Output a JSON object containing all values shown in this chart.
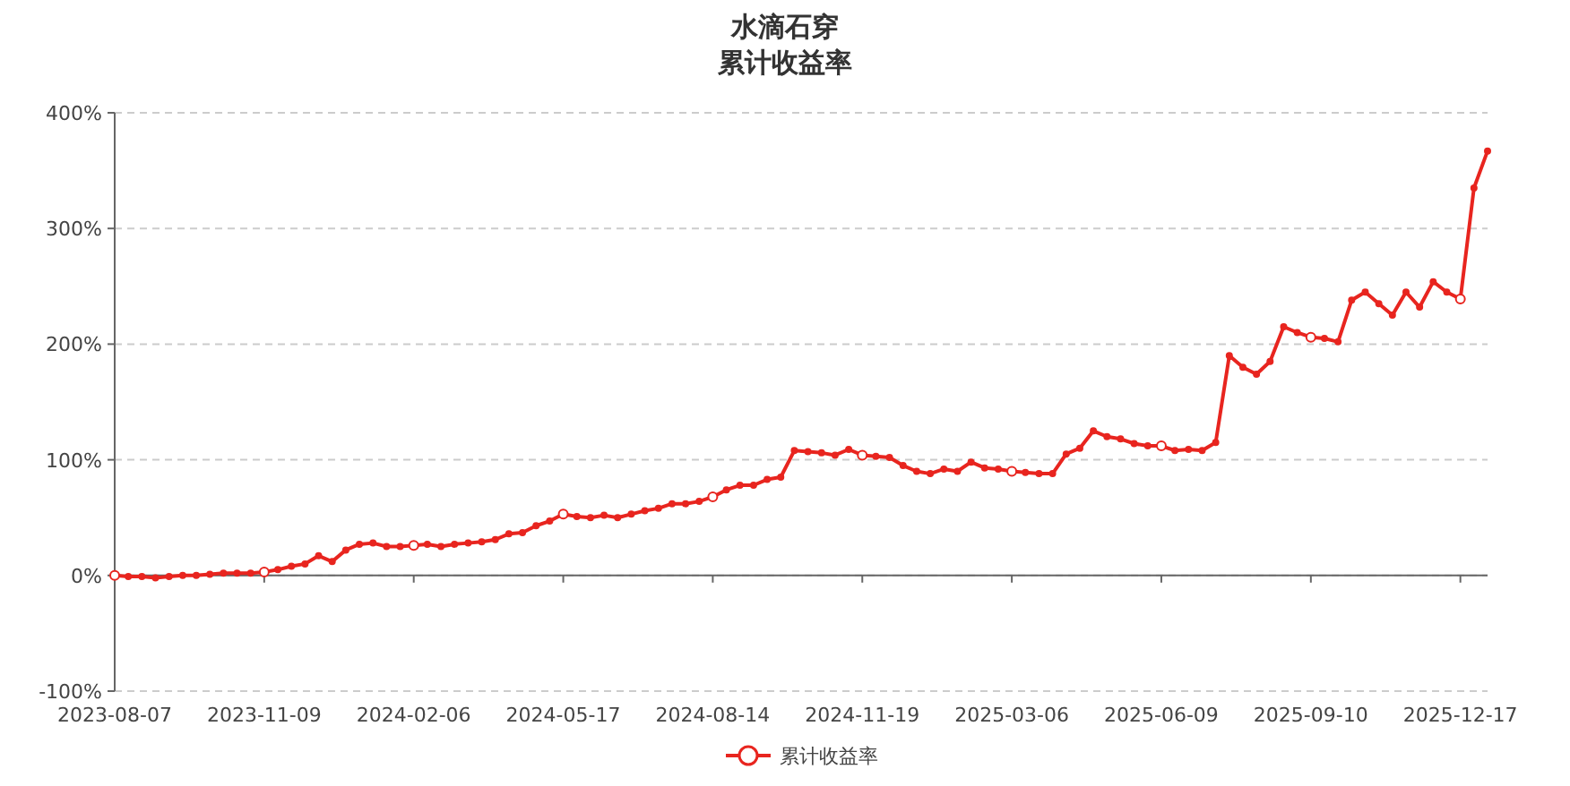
{
  "chart_data": {
    "type": "line",
    "title": "水滴石穿",
    "subtitle": "累计收益率",
    "categories": [
      "2023-08-07",
      null,
      null,
      null,
      null,
      null,
      null,
      null,
      null,
      null,
      null,
      "2023-11-09",
      null,
      null,
      null,
      null,
      null,
      null,
      null,
      null,
      null,
      null,
      "2024-02-06",
      null,
      null,
      null,
      null,
      null,
      null,
      null,
      null,
      null,
      null,
      "2024-05-17",
      null,
      null,
      null,
      null,
      null,
      null,
      null,
      null,
      null,
      null,
      "2024-08-14",
      null,
      null,
      null,
      null,
      null,
      null,
      null,
      null,
      null,
      null,
      "2024-11-19",
      null,
      null,
      null,
      null,
      null,
      null,
      null,
      null,
      null,
      null,
      "2025-03-06",
      null,
      null,
      null,
      null,
      null,
      null,
      null,
      null,
      null,
      null,
      "2025-06-09",
      null,
      null,
      null,
      null,
      null,
      null,
      null,
      null,
      null,
      null,
      "2025-09-10",
      null,
      null,
      null,
      null,
      null,
      null,
      null,
      null,
      null,
      null,
      "2025-12-17",
      null,
      null
    ],
    "series": [
      {
        "name": "累计收益率",
        "color": "#e8251f",
        "values": [
          0,
          -1,
          -1,
          -2,
          -1,
          0,
          0,
          1,
          2,
          2,
          2,
          3,
          5,
          8,
          10,
          17,
          12,
          22,
          27,
          28,
          25,
          25,
          26,
          27,
          25,
          27,
          28,
          29,
          31,
          36,
          37,
          43,
          47,
          53,
          51,
          50,
          52,
          50,
          53,
          56,
          58,
          62,
          62,
          64,
          68,
          74,
          78,
          78,
          83,
          85,
          108,
          107,
          106,
          104,
          109,
          104,
          103,
          102,
          95,
          90,
          88,
          92,
          90,
          98,
          93,
          92,
          90,
          89,
          88,
          88,
          105,
          110,
          125,
          120,
          118,
          114,
          112,
          112,
          108,
          109,
          108,
          115,
          190,
          180,
          174,
          185,
          215,
          210,
          206,
          205,
          202,
          238,
          245,
          235,
          225,
          245,
          232,
          254,
          245,
          239,
          335,
          367
        ]
      }
    ],
    "ylim": [
      -100,
      400
    ],
    "yticks": [
      {
        "value": -100,
        "label": "-100%"
      },
      {
        "value": 0,
        "label": "0%"
      },
      {
        "value": 100,
        "label": "100%"
      },
      {
        "value": 200,
        "label": "200%"
      },
      {
        "value": 300,
        "label": "300%"
      },
      {
        "value": 400,
        "label": "400%"
      }
    ],
    "grid": "y",
    "legend": "bottom",
    "marker": "circle",
    "line_style": "solid"
  }
}
